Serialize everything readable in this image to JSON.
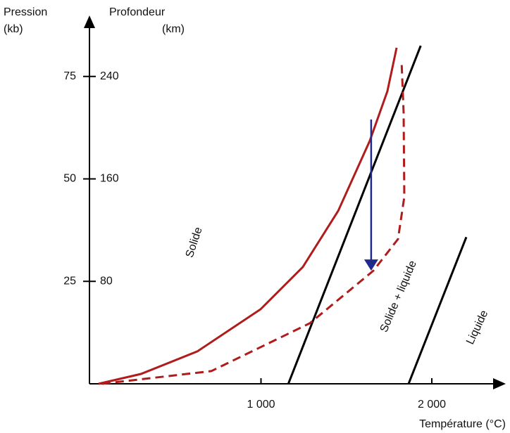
{
  "chart_data": {
    "type": "line",
    "y_label": [
      "Pression",
      "(kb)"
    ],
    "y2_label": [
      "Profondeur",
      "(km)"
    ],
    "x_label": "Température (°C)",
    "xlim": [
      0,
      2400
    ],
    "xticks": [
      {
        "value": 1000,
        "label": "1 000"
      },
      {
        "value": 2000,
        "label": "2 000"
      }
    ],
    "ylim": [
      0,
      90
    ],
    "yticks": [
      25,
      50,
      75
    ],
    "y2lim": [
      0,
      288
    ],
    "y2ticks": [
      80,
      160,
      240
    ],
    "series": [
      {
        "color": "#000000",
        "dash": false,
        "x": [
          1160,
          1935
        ],
        "values": [
          0,
          82.5
        ]
      },
      {
        "color": "#000000",
        "dash": false,
        "x": [
          1864,
          2202
        ],
        "values": [
          0,
          35.8
        ]
      },
      {
        "color": "#b01c1c",
        "dash": false,
        "x": [
          49,
          297,
          627,
          998,
          1245,
          1452,
          1637,
          1740,
          1794
        ],
        "values": [
          0,
          2.4,
          7.9,
          18.2,
          28.5,
          42.2,
          59.3,
          71.4,
          82.0
        ]
      },
      {
        "color": "#b01c1c",
        "dash": true,
        "x": [
          70,
          709,
          1287,
          1658,
          1802,
          1839,
          1835,
          1823
        ],
        "values": [
          0,
          3.1,
          14.8,
          27.6,
          35.3,
          45.6,
          66.2,
          78.6
        ]
      }
    ],
    "arrow": {
      "color": "#1f2a8c",
      "x": 1645,
      "from": 64.5,
      "to": 27.6
    },
    "annotations": [
      "Solide",
      "Solide + liquide",
      "Liquide"
    ]
  }
}
